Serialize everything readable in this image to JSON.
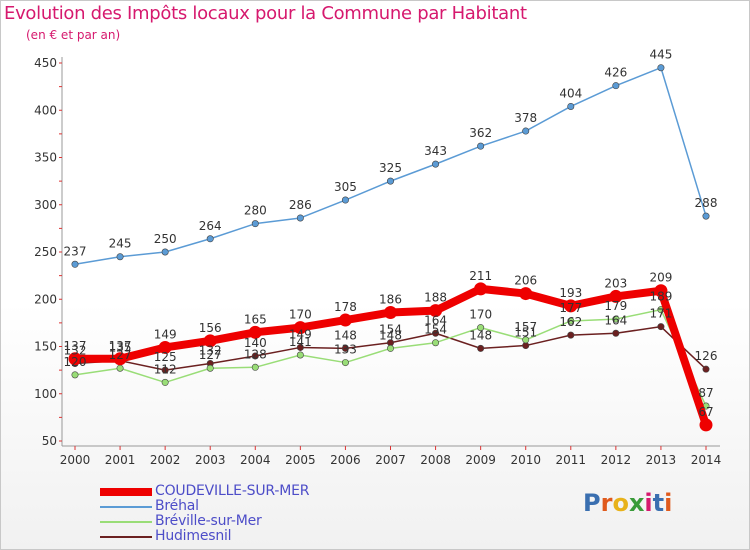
{
  "header": {
    "title": "Evolution des Impôts locaux pour la Commune par Habitant",
    "subtitle": "(en € et par an)"
  },
  "logo": {
    "text": "Proxiti",
    "letters": [
      {
        "ch": "P",
        "color": "#3a6fb0"
      },
      {
        "ch": "r",
        "color": "#e05a1c"
      },
      {
        "ch": "o",
        "color": "#e8b21a"
      },
      {
        "ch": "x",
        "color": "#3a9b3a"
      },
      {
        "ch": "i",
        "color": "#d6196e"
      },
      {
        "ch": "t",
        "color": "#3a6fb0"
      },
      {
        "ch": "i",
        "color": "#e05a1c"
      }
    ]
  },
  "chart_data": {
    "type": "line",
    "title": "Evolution des Impôts locaux pour la Commune par Habitant",
    "ylabel": "(en € et par an)",
    "xlabel": "",
    "x": [
      2000,
      2001,
      2002,
      2003,
      2004,
      2005,
      2006,
      2007,
      2008,
      2009,
      2010,
      2011,
      2012,
      2013,
      2014
    ],
    "ylim": [
      50,
      450
    ],
    "yticks": [
      50,
      100,
      150,
      200,
      250,
      300,
      350,
      400,
      450
    ],
    "grid": false,
    "legend_position": "bottom-left",
    "series": [
      {
        "name": "COUDEVILLE-SUR-MER",
        "color": "#ee0000",
        "emphasis": true,
        "values": [
          137,
          137,
          149,
          156,
          165,
          170,
          178,
          186,
          188,
          211,
          206,
          193,
          203,
          209,
          67
        ]
      },
      {
        "name": "Bréhal",
        "color": "#5b9bd5",
        "values": [
          237,
          245,
          250,
          264,
          280,
          286,
          305,
          325,
          343,
          362,
          378,
          404,
          426,
          445,
          288
        ]
      },
      {
        "name": "Bréville-sur-Mer",
        "color": "#99dd77",
        "values": [
          120,
          127,
          112,
          127,
          128,
          141,
          133,
          148,
          154,
          170,
          157,
          177,
          179,
          189,
          87
        ]
      },
      {
        "name": "Hudimesnil",
        "color": "#6b2020",
        "values": [
          132,
          135,
          125,
          132,
          140,
          149,
          148,
          154,
          164,
          148,
          151,
          162,
          164,
          171,
          126
        ]
      }
    ]
  }
}
